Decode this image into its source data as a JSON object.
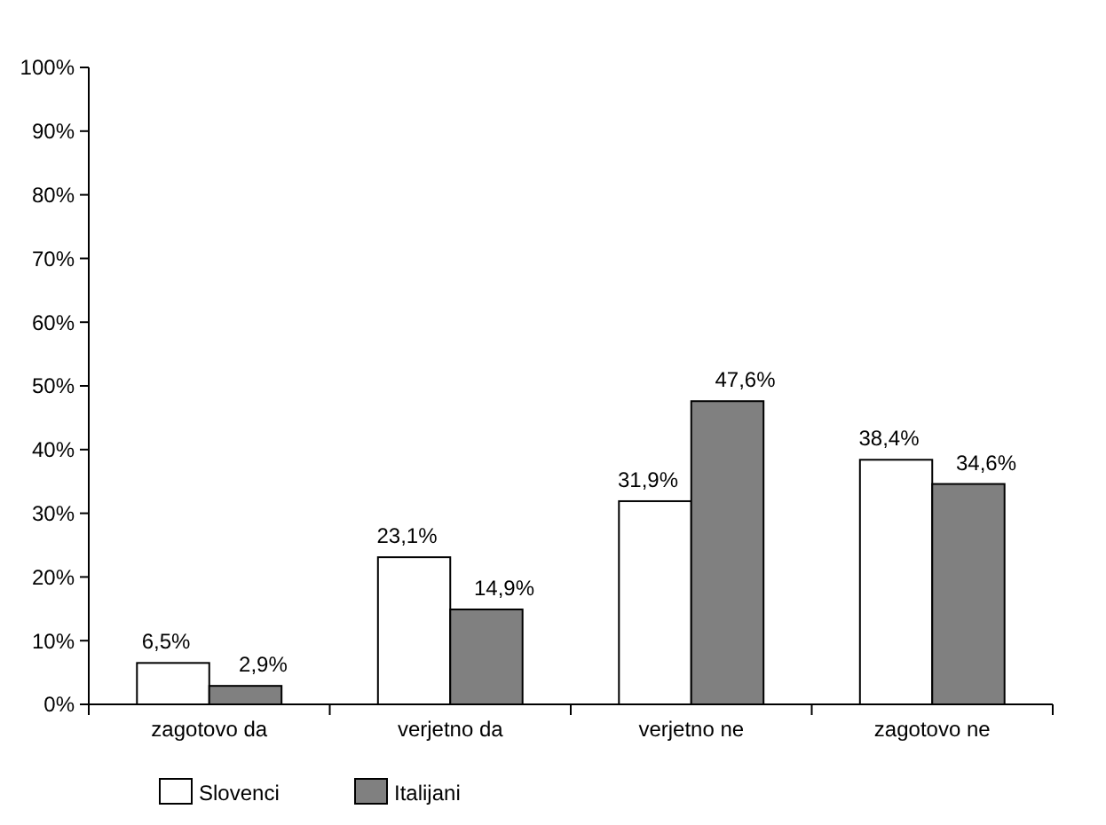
{
  "chart_data": {
    "type": "bar",
    "categories": [
      "zagotovo da",
      "verjetno da",
      "verjetno ne",
      "zagotovo ne"
    ],
    "series": [
      {
        "name": "Slovenci",
        "color": "#ffffff",
        "values": [
          6.5,
          23.1,
          31.9,
          38.4
        ],
        "value_labels": [
          "6,5%",
          "23,1%",
          "31,9%",
          "38,4%"
        ]
      },
      {
        "name": "Italijani",
        "color": "#808080",
        "values": [
          2.9,
          14.9,
          47.6,
          34.6
        ],
        "value_labels": [
          "2,9%",
          "14,9%",
          "47,6%",
          "34,6%"
        ]
      }
    ],
    "ylim": [
      0,
      100
    ],
    "yticks": [
      {
        "value": 0,
        "label": "0%"
      },
      {
        "value": 10,
        "label": "10%"
      },
      {
        "value": 20,
        "label": "20%"
      },
      {
        "value": 30,
        "label": "30%"
      },
      {
        "value": 40,
        "label": "40%"
      },
      {
        "value": 50,
        "label": "50%"
      },
      {
        "value": 60,
        "label": "60%"
      },
      {
        "value": 70,
        "label": "70%"
      },
      {
        "value": 80,
        "label": "80%"
      },
      {
        "value": 90,
        "label": "90%"
      },
      {
        "value": 100,
        "label": "100%"
      }
    ],
    "grid": false,
    "legend": "bottom left"
  }
}
